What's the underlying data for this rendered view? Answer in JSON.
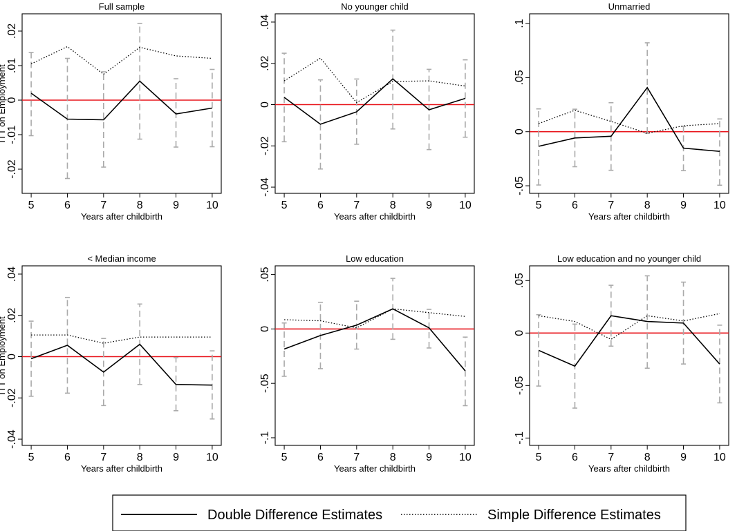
{
  "chart_data": {
    "type": "line",
    "panels": [
      {
        "title": "Full sample",
        "xlabel": "Years after childbirth",
        "ylabel": "ITT on Employment",
        "x": [
          5,
          6,
          7,
          8,
          9,
          10
        ],
        "ylim": [
          -0.027,
          0.025
        ],
        "yticks": [
          0.02,
          0.01,
          0,
          -0.01,
          -0.02
        ],
        "yticklabels": [
          ".02",
          ".01",
          "0",
          "-.01",
          "-.02"
        ],
        "double": [
          0.002,
          -0.0055,
          -0.0057,
          0.0055,
          -0.004,
          -0.0023
        ],
        "simple": [
          0.0105,
          0.0155,
          0.0075,
          0.0153,
          0.0128,
          0.0121
        ],
        "ci_low": [
          -0.0103,
          -0.0227,
          -0.0194,
          -0.0113,
          -0.0136,
          -0.0135
        ],
        "ci_high": [
          0.0138,
          0.0121,
          0.0082,
          0.0222,
          0.0062,
          0.0089
        ]
      },
      {
        "title": "No younger child",
        "xlabel": "Years after childbirth",
        "ylabel": "",
        "x": [
          5,
          6,
          7,
          8,
          9,
          10
        ],
        "ylim": [
          -0.043,
          0.044
        ],
        "yticks": [
          0.04,
          0.02,
          0,
          -0.02,
          -0.04
        ],
        "yticklabels": [
          ".04",
          ".02",
          "0",
          "-.02",
          "-.04"
        ],
        "double": [
          0.0035,
          -0.0095,
          -0.0035,
          0.0125,
          -0.0025,
          0.003
        ],
        "simple": [
          0.0115,
          0.0225,
          0.001,
          0.0112,
          0.0115,
          0.009
        ],
        "ci_low": [
          -0.018,
          -0.0312,
          -0.0192,
          -0.0118,
          -0.0218,
          -0.0158
        ],
        "ci_high": [
          0.0249,
          0.012,
          0.0124,
          0.0361,
          0.0171,
          0.0217
        ]
      },
      {
        "title": "Unmarried",
        "xlabel": "Years after childbirth",
        "ylabel": "",
        "x": [
          5,
          6,
          7,
          8,
          9,
          10
        ],
        "ylim": [
          -0.057,
          0.109
        ],
        "yticks": [
          0.1,
          0.05,
          0,
          -0.05
        ],
        "yticklabels": [
          ".1",
          ".05",
          "0",
          "-.05"
        ],
        "double": [
          -0.0135,
          -0.0058,
          -0.0042,
          0.0408,
          -0.0152,
          -0.0182
        ],
        "simple": [
          0.0075,
          0.0198,
          0.0095,
          -0.0015,
          0.0055,
          0.0075
        ],
        "ci_low": [
          -0.0493,
          -0.0324,
          -0.0357,
          -0.0015,
          -0.036,
          -0.0495
        ],
        "ci_high": [
          0.0211,
          0.0208,
          0.0268,
          0.0822,
          0.0048,
          0.0118
        ]
      },
      {
        "title": "< Median income",
        "xlabel": "Years after childbirth",
        "ylabel": "ITT on Employment",
        "x": [
          5,
          6,
          7,
          8,
          9,
          10
        ],
        "ylim": [
          -0.043,
          0.044
        ],
        "yticks": [
          0.04,
          0.02,
          0,
          -0.02,
          -0.04
        ],
        "yticklabels": [
          ".04",
          ".02",
          "0",
          "-.02",
          "-.04"
        ],
        "double": [
          -0.001,
          0.0055,
          -0.0075,
          0.006,
          -0.0135,
          -0.0138
        ],
        "simple": [
          0.0105,
          0.0105,
          0.0065,
          0.0095,
          0.0095,
          0.0095
        ],
        "ci_low": [
          -0.0192,
          -0.0177,
          -0.0237,
          -0.0135,
          -0.0262,
          -0.0302
        ],
        "ci_high": [
          0.0172,
          0.0287,
          0.0088,
          0.0255,
          -0.0005,
          0.0028
        ]
      },
      {
        "title": "Low education",
        "xlabel": "Years after childbirth",
        "ylabel": "",
        "x": [
          5,
          6,
          7,
          8,
          9,
          10
        ],
        "ylim": [
          -0.107,
          0.058
        ],
        "yticks": [
          0.05,
          0,
          -0.05,
          -0.1
        ],
        "yticklabels": [
          ".05",
          "0",
          "-.05",
          "-.1"
        ],
        "double": [
          -0.0185,
          -0.006,
          0.0035,
          0.0185,
          0.001,
          -0.0385
        ],
        "simple": [
          0.0085,
          0.0075,
          0.001,
          0.0185,
          0.015,
          0.0115
        ],
        "ci_low": [
          -0.0435,
          -0.0365,
          -0.0185,
          -0.0095,
          -0.0175,
          -0.0705
        ],
        "ci_high": [
          0.0055,
          0.0245,
          0.0255,
          0.0465,
          0.018,
          -0.0075
        ]
      },
      {
        "title": "Low education and no younger child",
        "xlabel": "Years after childbirth",
        "ylabel": "",
        "x": [
          5,
          6,
          7,
          8,
          9,
          10
        ],
        "ylim": [
          -0.107,
          0.064
        ],
        "yticks": [
          0.05,
          0,
          -0.05,
          -0.1
        ],
        "yticklabels": [
          ".05",
          "0",
          "-.05",
          "-.1"
        ],
        "double": [
          -0.0165,
          -0.0315,
          0.0165,
          0.011,
          0.0095,
          -0.0295
        ],
        "simple": [
          0.0165,
          0.011,
          -0.006,
          0.0165,
          0.0115,
          0.0185
        ],
        "ci_low": [
          -0.0505,
          -0.0715,
          -0.0125,
          -0.0335,
          -0.0295,
          -0.0665
        ],
        "ci_high": [
          0.0175,
          0.0085,
          0.0455,
          0.0545,
          0.0485,
          0.0075
        ]
      }
    ],
    "series_style": {
      "double": {
        "color": "#000000",
        "dash": "solid"
      },
      "simple": {
        "color": "#000000",
        "dash": "dotted"
      },
      "ci": {
        "color": "#aaaaaa",
        "dash": "dashed"
      },
      "zero_line": {
        "color": "#e8141b"
      }
    },
    "legend": {
      "placement": "bottom-center",
      "entries": [
        "Double Difference Estimates",
        "Simple Difference Estimates"
      ]
    },
    "grid": false
  }
}
